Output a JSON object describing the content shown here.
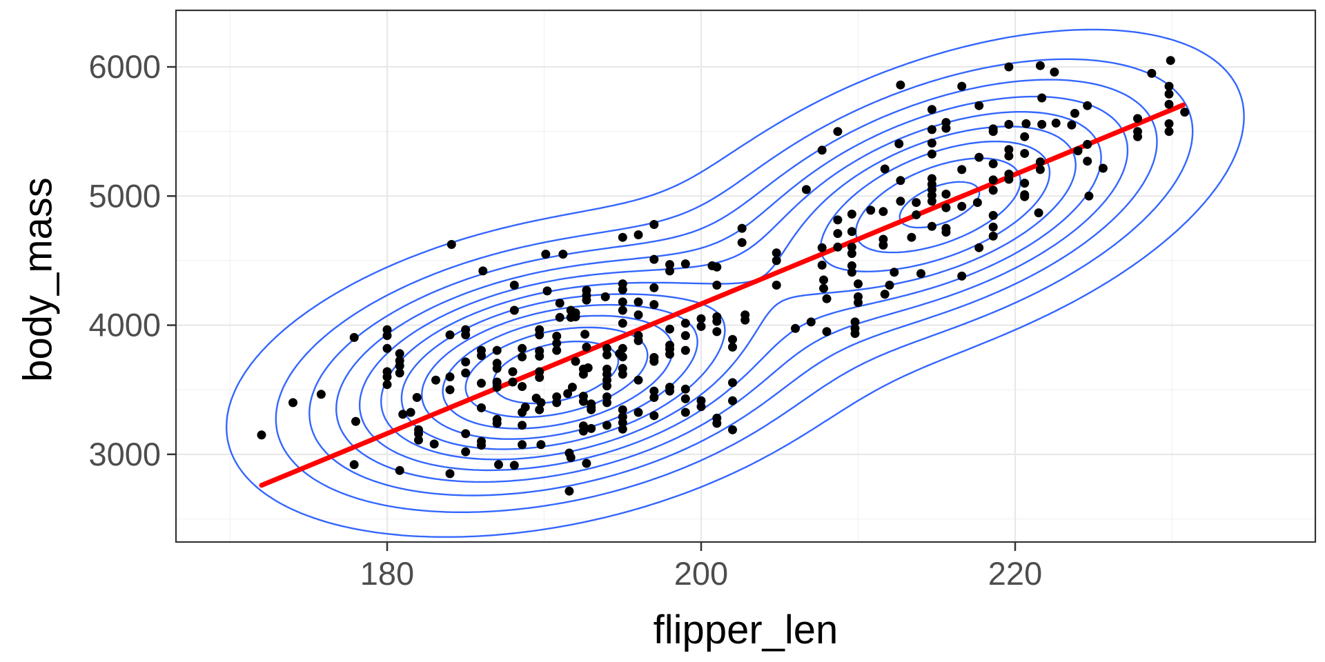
{
  "figure": {
    "background": "#FFFFFF",
    "style": "ggplot2 theme_bw scatter with 2D density contours and linear fit"
  },
  "axes": {
    "xlabel": "flipper_len",
    "ylabel": "body_mass",
    "x_major_ticks": [
      180,
      200,
      220
    ],
    "x_minor_ticks": [
      170,
      190,
      210,
      230
    ],
    "y_major_ticks": [
      3000,
      4000,
      5000,
      6000
    ],
    "y_minor_ticks": [
      2500,
      3500,
      4500,
      5500
    ],
    "xlim": [
      166.55,
      239.12
    ],
    "ylim": [
      2321,
      6438
    ],
    "tick_label_color": "#4D4D4D",
    "tick_mark_color": "#333333",
    "panel_border_color": "#333333",
    "grid_major_color": "#E8E8E8",
    "grid_minor_color": "#F1F1F1"
  },
  "chart_data": {
    "type": "scatter",
    "title": "",
    "xlabel": "flipper_len",
    "ylabel": "body_mass",
    "xlim": [
      166.55,
      239.12
    ],
    "ylim": [
      2321,
      6438
    ],
    "x_ticks": [
      180,
      200,
      220
    ],
    "y_ticks": [
      3000,
      4000,
      5000,
      6000
    ],
    "grid": "major and minor, light gray on white",
    "point_color": "#000000",
    "point_radius": 6.5,
    "regression_line": {
      "x1": 172.0,
      "y1": 2760,
      "x2": 230.7,
      "y2": 5705,
      "color": "#FF0000",
      "width": 7
    },
    "density_contours": {
      "color": "#3366FF",
      "width": 2.4,
      "n_levels": 11,
      "level_exponent": 1.3,
      "gaussian_mixture": [
        {
          "weight": 0.58,
          "mean_x": 190.6,
          "mean_y": 3630,
          "sd_x": 8.2,
          "sd_y": 500,
          "rho": 0.33
        },
        {
          "weight": 0.42,
          "mean_x": 215.3,
          "mean_y": 4940,
          "sd_x": 8.0,
          "sd_y": 560,
          "rho": 0.5
        }
      ]
    },
    "points": [
      [
        172,
        3150
      ],
      [
        174,
        3400
      ],
      [
        175.8,
        3465
      ],
      [
        177.9,
        3905
      ],
      [
        178,
        3255
      ],
      [
        177.9,
        2920
      ],
      [
        180.8,
        2875
      ],
      [
        184,
        2850
      ],
      [
        191.6,
        3010
      ],
      [
        191.7,
        2975
      ],
      [
        192.7,
        2930
      ],
      [
        191.6,
        2715
      ],
      [
        180,
        3965
      ],
      [
        180,
        3920
      ],
      [
        180,
        3820
      ],
      [
        180,
        3640
      ],
      [
        180,
        3600
      ],
      [
        180,
        3540
      ],
      [
        180.8,
        3780
      ],
      [
        180.8,
        3725
      ],
      [
        180.8,
        3685
      ],
      [
        180.8,
        3630
      ],
      [
        181.9,
        3440
      ],
      [
        181.5,
        3325
      ],
      [
        181,
        3310
      ],
      [
        182,
        3190
      ],
      [
        182,
        3160
      ],
      [
        182,
        3110
      ],
      [
        183,
        3080
      ],
      [
        183.1,
        3575
      ],
      [
        184,
        3600
      ],
      [
        184,
        3500
      ],
      [
        184,
        3925
      ],
      [
        185,
        3965
      ],
      [
        185,
        3925
      ],
      [
        185,
        3715
      ],
      [
        185,
        3630
      ],
      [
        185,
        3160
      ],
      [
        185,
        3020
      ],
      [
        186,
        3805
      ],
      [
        186,
        3765
      ],
      [
        186,
        3550
      ],
      [
        186,
        3360
      ],
      [
        186,
        3100
      ],
      [
        186,
        3070
      ],
      [
        187,
        3805
      ],
      [
        187,
        3705
      ],
      [
        187,
        3665
      ],
      [
        187,
        3560
      ],
      [
        187,
        3520
      ],
      [
        187,
        3270
      ],
      [
        187,
        3240
      ],
      [
        187.1,
        2920
      ],
      [
        188.1,
        2915
      ],
      [
        188,
        3640
      ],
      [
        188,
        3560
      ],
      [
        188.6,
        3820
      ],
      [
        188.6,
        3755
      ],
      [
        188.6,
        3525
      ],
      [
        188.8,
        3365
      ],
      [
        188.6,
        3325
      ],
      [
        188.6,
        3225
      ],
      [
        188.6,
        3075
      ],
      [
        189.8,
        3075
      ],
      [
        188.1,
        4310
      ],
      [
        190.2,
        4265
      ],
      [
        191,
        4170
      ],
      [
        191,
        4060
      ],
      [
        188.1,
        4115
      ],
      [
        189.7,
        3965
      ],
      [
        189.7,
        3925
      ],
      [
        189.7,
        3800
      ],
      [
        189.7,
        3760
      ],
      [
        189.7,
        3640
      ],
      [
        189.7,
        3595
      ],
      [
        189.5,
        3435
      ],
      [
        189.8,
        3400
      ],
      [
        189.7,
        3345
      ],
      [
        190.8,
        3915
      ],
      [
        190.8,
        3860
      ],
      [
        190.8,
        3805
      ],
      [
        190.8,
        3445
      ],
      [
        190.8,
        3400
      ],
      [
        191.7,
        4115
      ],
      [
        191.7,
        4060
      ],
      [
        192,
        3720
      ],
      [
        191.8,
        3520
      ],
      [
        191.5,
        3470
      ],
      [
        192.7,
        4270
      ],
      [
        192.7,
        4230
      ],
      [
        193.9,
        4220
      ],
      [
        192.7,
        4195
      ],
      [
        192.6,
        3930
      ],
      [
        192.7,
        3830
      ],
      [
        194,
        3820
      ],
      [
        194,
        3770
      ],
      [
        192.8,
        3670
      ],
      [
        194,
        3660
      ],
      [
        194,
        3620
      ],
      [
        194,
        3575
      ],
      [
        194,
        3530
      ],
      [
        192.5,
        3450
      ],
      [
        192.5,
        3410
      ],
      [
        193,
        3365
      ],
      [
        194,
        3445
      ],
      [
        194,
        3400
      ],
      [
        193,
        3390
      ],
      [
        193,
        3345
      ],
      [
        192.5,
        3220
      ],
      [
        192.5,
        3180
      ],
      [
        193,
        3200
      ],
      [
        194,
        3225
      ],
      [
        192.5,
        3660
      ],
      [
        192.5,
        3620
      ],
      [
        195,
        3820
      ],
      [
        194.8,
        3780
      ],
      [
        195,
        3755
      ],
      [
        195,
        3665
      ],
      [
        195,
        3620
      ],
      [
        195,
        3345
      ],
      [
        195,
        3290
      ],
      [
        195,
        3245
      ],
      [
        195,
        3195
      ],
      [
        196,
        3920
      ],
      [
        196,
        3880
      ],
      [
        196,
        3575
      ],
      [
        196,
        3325
      ],
      [
        197,
        3750
      ],
      [
        197,
        3720
      ],
      [
        197,
        3490
      ],
      [
        197,
        3440
      ],
      [
        197,
        3300
      ],
      [
        198,
        3845
      ],
      [
        198,
        3815
      ],
      [
        198,
        3775
      ],
      [
        198,
        3520
      ],
      [
        198,
        3490
      ],
      [
        199,
        3805
      ],
      [
        199,
        3505
      ],
      [
        199,
        3430
      ],
      [
        199,
        3325
      ],
      [
        200,
        3415
      ],
      [
        200,
        3370
      ],
      [
        201,
        3280
      ],
      [
        201,
        3240
      ],
      [
        202,
        3555
      ],
      [
        202,
        3415
      ],
      [
        202,
        3190
      ],
      [
        195,
        4320
      ],
      [
        195,
        4275
      ],
      [
        195,
        4180
      ],
      [
        195,
        4115
      ],
      [
        195,
        4015
      ],
      [
        196,
        4180
      ],
      [
        196,
        4080
      ],
      [
        197,
        4290
      ],
      [
        197,
        4160
      ],
      [
        198,
        3970
      ],
      [
        199,
        4015
      ],
      [
        199,
        3920
      ],
      [
        200,
        4050
      ],
      [
        200,
        3990
      ],
      [
        201,
        4065
      ],
      [
        201,
        4030
      ],
      [
        201,
        3950
      ],
      [
        202,
        3890
      ],
      [
        202,
        3830
      ],
      [
        202.8,
        4080
      ],
      [
        202.8,
        4040
      ],
      [
        206,
        3975
      ],
      [
        207,
        4025
      ],
      [
        208,
        3950
      ],
      [
        209.8,
        4025
      ],
      [
        209.8,
        3975
      ],
      [
        209.8,
        3935
      ],
      [
        192,
        4095
      ],
      [
        192,
        4065
      ],
      [
        184.1,
        4625
      ],
      [
        186.1,
        4420
      ],
      [
        190.1,
        4550
      ],
      [
        191.2,
        4550
      ],
      [
        195,
        4680
      ],
      [
        196,
        4700
      ],
      [
        197,
        4780
      ],
      [
        197,
        4510
      ],
      [
        198,
        4470
      ],
      [
        198,
        4420
      ],
      [
        199,
        4475
      ],
      [
        201,
        4450
      ],
      [
        201,
        4310
      ],
      [
        200.7,
        4460
      ],
      [
        202.6,
        4750
      ],
      [
        202.6,
        4640
      ],
      [
        204.8,
        4560
      ],
      [
        204.8,
        4500
      ],
      [
        204.8,
        4310
      ],
      [
        207.7,
        4600
      ],
      [
        207.7,
        4465
      ],
      [
        207.8,
        4350
      ],
      [
        207.8,
        4285
      ],
      [
        208,
        4205
      ],
      [
        209.6,
        4460
      ],
      [
        209.6,
        4410
      ],
      [
        210,
        4320
      ],
      [
        210,
        4220
      ],
      [
        210,
        4175
      ],
      [
        212,
        4310
      ],
      [
        211.7,
        4240
      ],
      [
        212.3,
        4410
      ],
      [
        214,
        4400
      ],
      [
        216.6,
        4380
      ],
      [
        208.7,
        5500
      ],
      [
        207.7,
        5355
      ],
      [
        206.7,
        5050
      ],
      [
        208.7,
        4815
      ],
      [
        208.7,
        4710
      ],
      [
        208.7,
        4605
      ],
      [
        209.6,
        4860
      ],
      [
        209.6,
        4725
      ],
      [
        209.6,
        4605
      ],
      [
        209.6,
        4555
      ],
      [
        210.8,
        4890
      ],
      [
        211.6,
        4880
      ],
      [
        211.6,
        4665
      ],
      [
        211.6,
        4620
      ],
      [
        212.6,
        5405
      ],
      [
        212.7,
        5120
      ],
      [
        212.7,
        4960
      ],
      [
        212.7,
        5860
      ],
      [
        211.7,
        5210
      ],
      [
        213.7,
        4950
      ],
      [
        213.7,
        4855
      ],
      [
        213.4,
        4680
      ],
      [
        214.7,
        4765
      ],
      [
        214.7,
        5670
      ],
      [
        214.7,
        5515
      ],
      [
        214.7,
        5410
      ],
      [
        214.7,
        5325
      ],
      [
        214.7,
        5135
      ],
      [
        214.7,
        5090
      ],
      [
        214.7,
        5050
      ],
      [
        214.7,
        5005
      ],
      [
        214.7,
        4960
      ],
      [
        215.6,
        5570
      ],
      [
        215.6,
        5525
      ],
      [
        215.6,
        5015
      ],
      [
        215.6,
        4910
      ],
      [
        215.6,
        4750
      ],
      [
        215.6,
        4720
      ],
      [
        216.6,
        4920
      ],
      [
        217.6,
        4950
      ],
      [
        216.6,
        5850
      ],
      [
        217.7,
        5700
      ],
      [
        216.6,
        5205
      ],
      [
        217.7,
        5300
      ],
      [
        217.7,
        4600
      ],
      [
        218.6,
        5520
      ],
      [
        218.6,
        5250
      ],
      [
        218.6,
        5125
      ],
      [
        218.6,
        5045
      ],
      [
        218.6,
        4850
      ],
      [
        218.6,
        4760
      ],
      [
        218.6,
        4690
      ],
      [
        218.6,
        5500
      ],
      [
        219.6,
        6000
      ],
      [
        221.6,
        6010
      ],
      [
        222.5,
        5960
      ],
      [
        219.6,
        5555
      ],
      [
        220.7,
        5560
      ],
      [
        221.7,
        5555
      ],
      [
        222.6,
        5565
      ],
      [
        223.6,
        5550
      ],
      [
        219.6,
        5360
      ],
      [
        219.6,
        5310
      ],
      [
        219.6,
        5170
      ],
      [
        219.6,
        5130
      ],
      [
        220.6,
        5460
      ],
      [
        220.6,
        5330
      ],
      [
        220.6,
        5100
      ],
      [
        220.6,
        5010
      ],
      [
        220.6,
        4995
      ],
      [
        221.6,
        5265
      ],
      [
        221.6,
        5205
      ],
      [
        221.5,
        4870
      ],
      [
        221.7,
        5760
      ],
      [
        223.8,
        5640
      ],
      [
        224.6,
        5700
      ],
      [
        224.6,
        5270
      ],
      [
        224,
        5350
      ],
      [
        225.6,
        5215
      ],
      [
        224.7,
        5000
      ],
      [
        229.9,
        6050
      ],
      [
        228.7,
        5950
      ],
      [
        229.8,
        5850
      ],
      [
        229.8,
        5790
      ],
      [
        229.8,
        5710
      ],
      [
        230.8,
        5650
      ],
      [
        227.8,
        5600
      ],
      [
        229.8,
        5560
      ],
      [
        229.8,
        5500
      ],
      [
        227.8,
        5500
      ],
      [
        227.8,
        5460
      ],
      [
        224.6,
        5400
      ]
    ]
  }
}
